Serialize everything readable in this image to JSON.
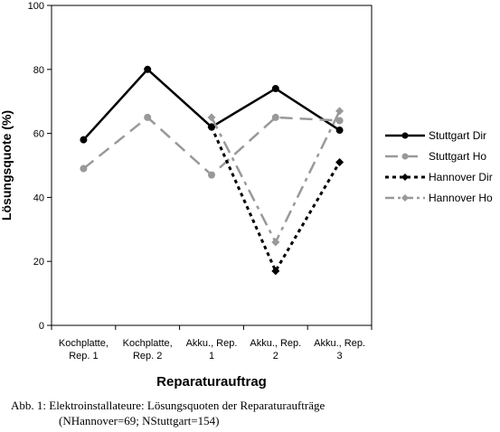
{
  "chart_data": {
    "type": "line",
    "categories": [
      [
        "Kochplatte,",
        "Rep. 1"
      ],
      [
        "Kochplatte,",
        "Rep. 2"
      ],
      [
        "Akku., Rep.",
        "1"
      ],
      [
        "Akku., Rep.",
        "2"
      ],
      [
        "Akku., Rep.",
        "3"
      ]
    ],
    "series": [
      {
        "name": "Stuttgart Dir",
        "values": [
          58,
          80,
          62,
          74,
          61
        ],
        "color": "#000000",
        "dash": "solid",
        "marker": "circle"
      },
      {
        "name": "Stuttgart Ho",
        "values": [
          49,
          65,
          47,
          65,
          64
        ],
        "color": "#999999",
        "dash": "dashed",
        "marker": "circle"
      },
      {
        "name": "Hannover Dir",
        "values": [
          null,
          null,
          62,
          17,
          51
        ],
        "color": "#000000",
        "dash": "dotted",
        "marker": "diamond"
      },
      {
        "name": "Hannover Ho",
        "values": [
          null,
          null,
          65,
          26,
          67
        ],
        "color": "#999999",
        "dash": "dashdot",
        "marker": "diamond"
      }
    ],
    "ylim": [
      0,
      100
    ],
    "yticks": [
      0,
      20,
      40,
      60,
      80,
      100
    ],
    "xlabel": "Reparaturauftrag",
    "ylabel": "Lösungsquote (%)",
    "grid": false,
    "legend": "right"
  },
  "caption": {
    "line1": "Abb. 1: Elektroinstallateure: Lösungsquoten der Reparaturaufträge",
    "line2": "(NHannover=69; NStuttgart=154)"
  }
}
